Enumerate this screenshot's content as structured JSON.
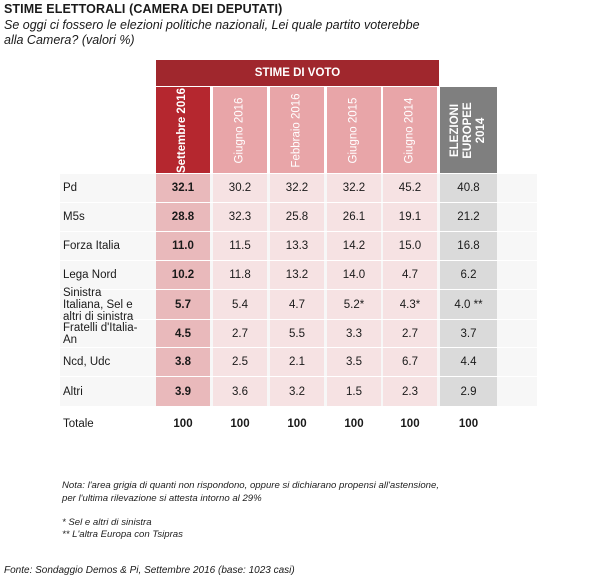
{
  "title": "STIME ELETTORALI (CAMERA DEI DEPUTATI)",
  "subtitle": "Se oggi ci fossero le elezioni politiche nazionali, Lei quale partito voterebbe alla Camera? (valori %)",
  "group_header": "STIME DI VOTO",
  "columns": [
    {
      "label": "Settembre 2016",
      "color": "#b5272f",
      "text_color": "#ffffff",
      "bold": true
    },
    {
      "label": "Giugno 2016",
      "color": "#e8a5a8",
      "text_color": "#ffffff",
      "bold": false
    },
    {
      "label": "Febbraio 2016",
      "color": "#e8a5a8",
      "text_color": "#ffffff",
      "bold": false
    },
    {
      "label": "Giugno 2015",
      "color": "#e8a5a8",
      "text_color": "#ffffff",
      "bold": false
    },
    {
      "label": "Giugno 2014",
      "color": "#e8a5a8",
      "text_color": "#ffffff",
      "bold": false
    },
    {
      "label": "ELEZIONI EUROPEE 2014",
      "color": "#7f7f7f",
      "text_color": "#ffffff",
      "bold": true
    }
  ],
  "colors": {
    "header_red": "#a0272d",
    "first_col_cell": "#e9b9bb",
    "mid_col_cell": "#f6e2e3",
    "last_col_cell": "#dadada",
    "row_band": "#f7f7f7"
  },
  "chart_data": {
    "type": "table",
    "rows": [
      {
        "label": "Pd",
        "values": [
          "32.1",
          "30.2",
          "32.2",
          "32.2",
          "45.2",
          "40.8"
        ]
      },
      {
        "label": "M5s",
        "values": [
          "28.8",
          "32.3",
          "25.8",
          "26.1",
          "19.1",
          "21.2"
        ]
      },
      {
        "label": "Forza Italia",
        "values": [
          "11.0",
          "11.5",
          "13.3",
          "14.2",
          "15.0",
          "16.8"
        ]
      },
      {
        "label": "Lega Nord",
        "values": [
          "10.2",
          "11.8",
          "13.2",
          "14.0",
          "4.7",
          "6.2"
        ]
      },
      {
        "label": "Sinistra Italiana, Sel e altri di sinistra",
        "label_lines": [
          "Sinistra",
          "Italiana, Sel e",
          "altri di sinistra"
        ],
        "values": [
          "5.7",
          "5.4",
          "4.7",
          "5.2*",
          "4.3*",
          "4.0 **"
        ]
      },
      {
        "label": "Fratelli d'Italia-An",
        "label_lines": [
          "Fratelli d'Italia-",
          "An"
        ],
        "values": [
          "4.5",
          "2.7",
          "5.5",
          "3.3",
          "2.7",
          "3.7"
        ]
      },
      {
        "label": "Ncd, Udc",
        "values": [
          "3.8",
          "2.5",
          "2.1",
          "3.5",
          "6.7",
          "4.4"
        ]
      },
      {
        "label": "Altri",
        "values": [
          "3.9",
          "3.6",
          "3.2",
          "1.5",
          "2.3",
          "2.9"
        ]
      }
    ],
    "total": {
      "label": "Totale",
      "values": [
        "100",
        "100",
        "100",
        "100",
        "100",
        "100"
      ]
    }
  },
  "notes": {
    "note1": "Nota: l'area grigia di quanti non rispondono, oppure si dichiarano propensi all'astensione, per l'ultima rilevazione si attesta intorno al 29%",
    "note2": "* Sel e altri di sinistra",
    "note3": "** L'altra Europa con Tsipras"
  },
  "source": "Fonte: Sondaggio Demos & Pi, Settembre 2016 (base: 1023 casi)"
}
